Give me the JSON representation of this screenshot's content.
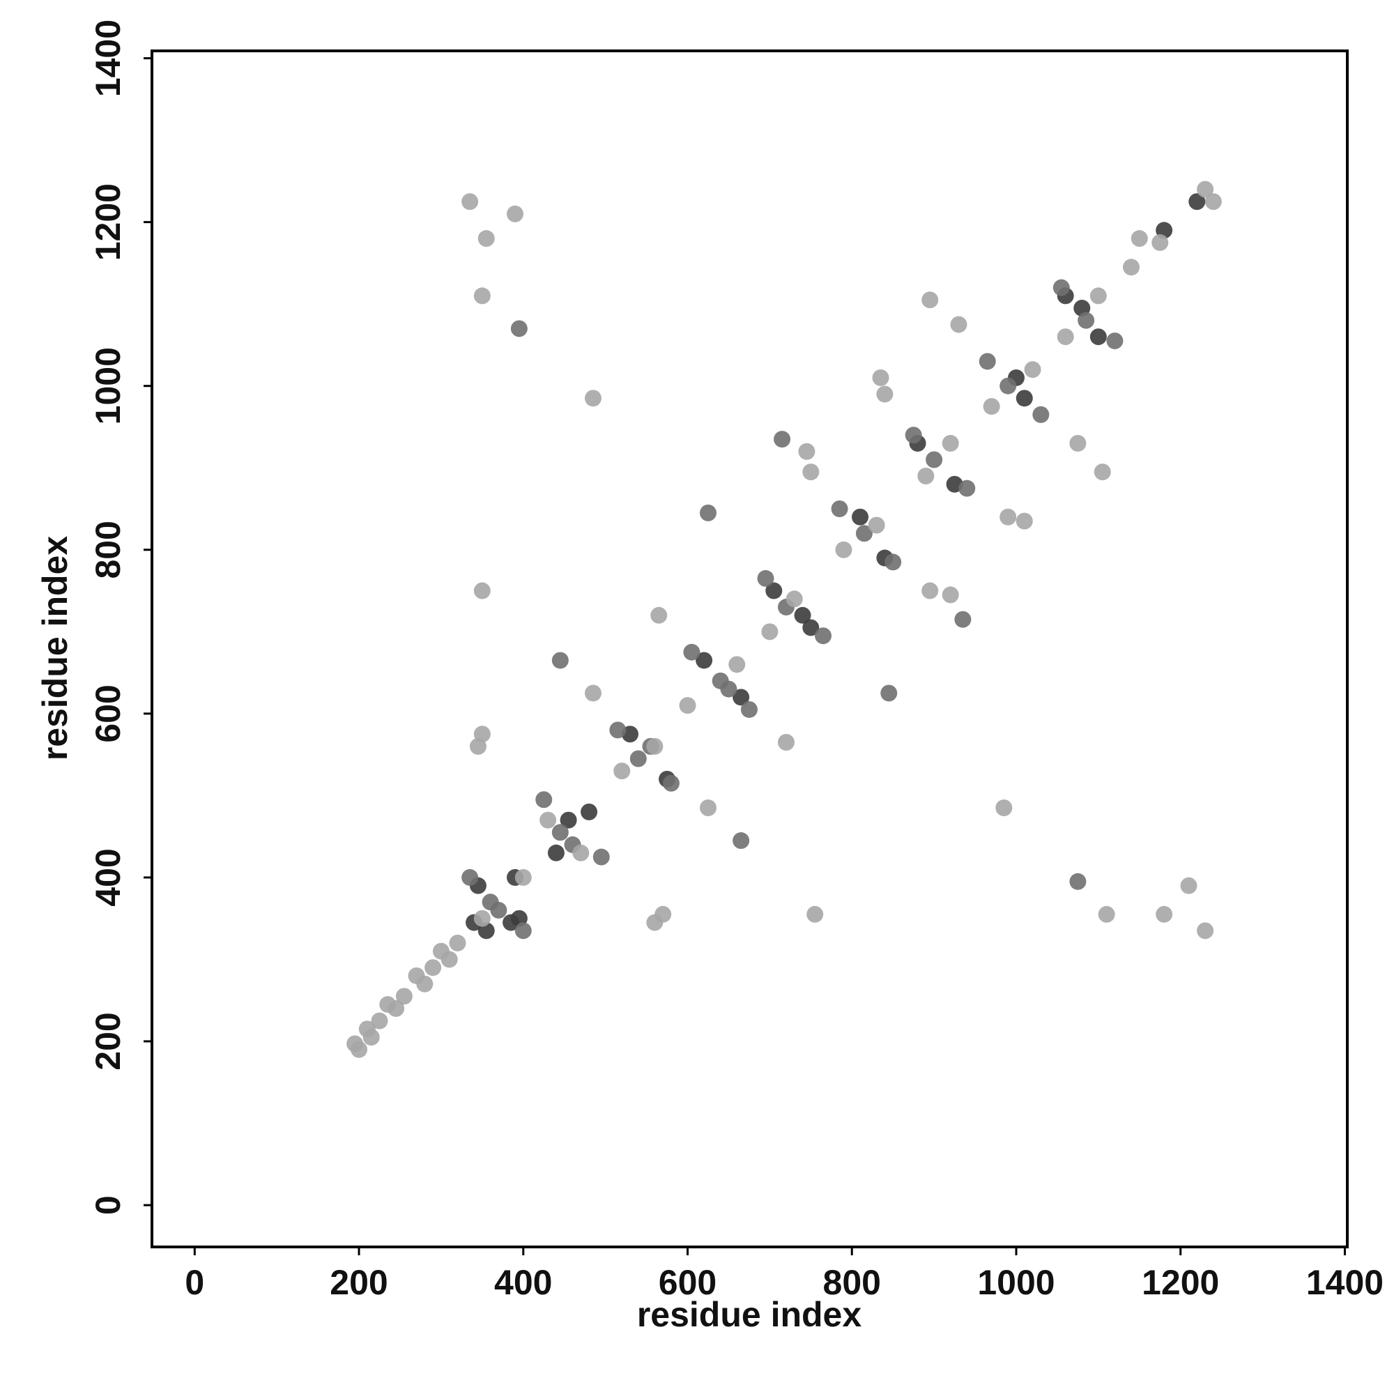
{
  "chart_data": {
    "type": "scatter",
    "x_label": "residue index",
    "y_label": "residue index",
    "xlim": [
      -52,
      1403
    ],
    "ylim": [
      -51,
      1409
    ],
    "xticks": [
      0,
      200,
      400,
      600,
      800,
      1000,
      1200,
      1400
    ],
    "yticks": [
      0,
      200,
      400,
      600,
      800,
      1000,
      1200,
      1400
    ],
    "series": [
      {
        "color": "#3c3c3c",
        "x": [
          340,
          390,
          355,
          395,
          455,
          480,
          440,
          530,
          575,
          620,
          665,
          705,
          750,
          740,
          810,
          840,
          880,
          925,
          1000,
          1010,
          1080,
          1100,
          1060,
          1220,
          1180,
          385,
          345
        ],
        "values": [
          345,
          400,
          335,
          350,
          470,
          480,
          430,
          575,
          520,
          665,
          620,
          750,
          705,
          720,
          840,
          790,
          930,
          880,
          1010,
          985,
          1095,
          1060,
          1110,
          1225,
          1190,
          345,
          390
        ]
      },
      {
        "color": "#707070",
        "x": [
          335,
          400,
          360,
          370,
          425,
          495,
          445,
          460,
          515,
          580,
          540,
          555,
          605,
          675,
          640,
          650,
          695,
          765,
          720,
          785,
          850,
          815,
          875,
          940,
          900,
          965,
          1030,
          990,
          1055,
          1120,
          1085,
          625,
          845,
          665,
          445,
          1075,
          395,
          935,
          715
        ],
        "values": [
          400,
          335,
          370,
          360,
          495,
          425,
          455,
          440,
          580,
          515,
          545,
          560,
          675,
          605,
          640,
          630,
          765,
          695,
          730,
          850,
          785,
          820,
          940,
          875,
          910,
          1030,
          965,
          1000,
          1120,
          1055,
          1080,
          845,
          625,
          445,
          665,
          395,
          1070,
          715,
          935
        ]
      },
      {
        "color": "#a6a6a6",
        "x": [
          195,
          200,
          210,
          215,
          225,
          235,
          245,
          255,
          270,
          280,
          290,
          300,
          310,
          320,
          335,
          1230,
          390,
          1210,
          355,
          1180,
          350,
          1110,
          485,
          985,
          350,
          755,
          350,
          570,
          345,
          560,
          485,
          625,
          565,
          720,
          745,
          920,
          750,
          895,
          840,
          990,
          835,
          1010,
          930,
          1075,
          1105,
          895,
          1140,
          1150,
          1175,
          1240,
          1230,
          350,
          400,
          430,
          470,
          520,
          560,
          600,
          660,
          700,
          730,
          790,
          830,
          890,
          920,
          970,
          1020,
          1060,
          1100
        ],
        "values": [
          197,
          190,
          215,
          205,
          225,
          245,
          240,
          255,
          280,
          270,
          290,
          310,
          300,
          320,
          1225,
          335,
          1210,
          390,
          1180,
          355,
          1110,
          355,
          985,
          485,
          750,
          355,
          575,
          355,
          560,
          345,
          625,
          485,
          720,
          565,
          920,
          745,
          895,
          750,
          990,
          840,
          1010,
          835,
          1075,
          930,
          895,
          1105,
          1145,
          1180,
          1175,
          1225,
          1240,
          350,
          400,
          470,
          430,
          530,
          560,
          610,
          660,
          700,
          740,
          800,
          830,
          890,
          930,
          975,
          1020,
          1060,
          1110
        ]
      }
    ]
  }
}
